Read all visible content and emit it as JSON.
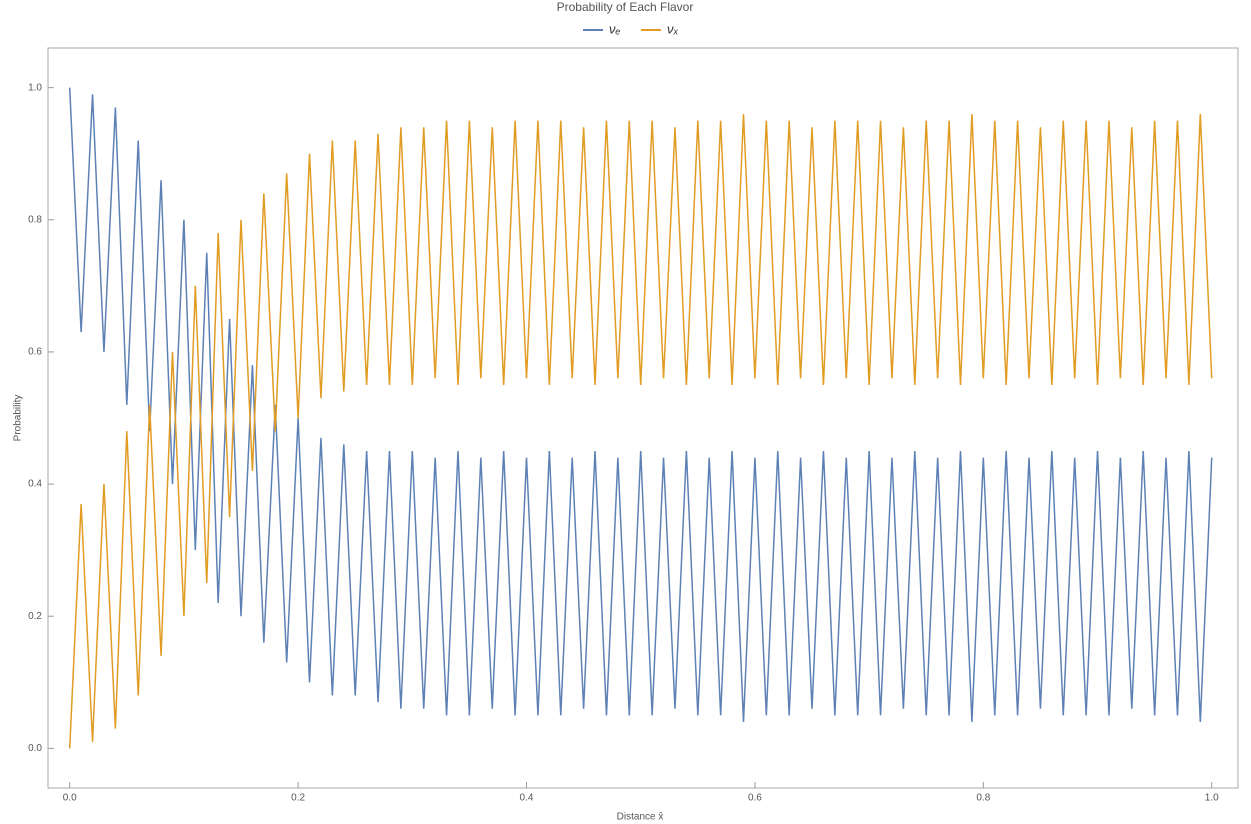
{
  "chart_data": {
    "type": "line",
    "title": "Probability of Each Flavor",
    "x_label": "Distance x̂",
    "y_label": "Probability",
    "x": [
      0,
      0.01,
      0.02,
      0.03,
      0.04,
      0.05,
      0.06,
      0.07,
      0.08,
      0.09,
      0.1,
      0.11,
      0.12,
      0.13,
      0.14,
      0.15,
      0.16,
      0.17,
      0.18,
      0.19,
      0.2,
      0.21,
      0.22,
      0.23,
      0.24,
      0.25,
      0.26,
      0.27,
      0.28,
      0.29,
      0.3,
      0.31,
      0.32,
      0.33,
      0.34,
      0.35,
      0.36,
      0.37,
      0.38,
      0.39,
      0.4,
      0.41,
      0.42,
      0.43,
      0.44,
      0.45,
      0.46,
      0.47,
      0.48,
      0.49,
      0.5,
      0.51,
      0.52,
      0.53,
      0.54,
      0.55,
      0.56,
      0.57,
      0.58,
      0.59,
      0.6,
      0.61,
      0.62,
      0.63,
      0.64,
      0.65,
      0.66,
      0.67,
      0.68,
      0.69,
      0.7,
      0.71,
      0.72,
      0.73,
      0.74,
      0.75,
      0.76,
      0.77,
      0.78,
      0.79,
      0.8,
      0.81,
      0.82,
      0.83,
      0.84,
      0.85,
      0.86,
      0.87,
      0.88,
      0.89,
      0.9,
      0.91,
      0.92,
      0.93,
      0.94,
      0.95,
      0.96,
      0.97,
      0.98,
      0.99,
      1
    ],
    "series": [
      {
        "name": "νₑ",
        "color": "#5e81b5",
        "values": [
          1.0,
          0.63,
          0.99,
          0.6,
          0.97,
          0.52,
          0.92,
          0.48,
          0.86,
          0.4,
          0.8,
          0.3,
          0.75,
          0.22,
          0.65,
          0.2,
          0.58,
          0.16,
          0.52,
          0.13,
          0.5,
          0.1,
          0.47,
          0.08,
          0.46,
          0.08,
          0.45,
          0.07,
          0.45,
          0.06,
          0.45,
          0.06,
          0.44,
          0.05,
          0.45,
          0.05,
          0.44,
          0.06,
          0.45,
          0.05,
          0.44,
          0.05,
          0.45,
          0.05,
          0.44,
          0.06,
          0.45,
          0.05,
          0.44,
          0.05,
          0.45,
          0.05,
          0.44,
          0.06,
          0.45,
          0.05,
          0.44,
          0.05,
          0.45,
          0.04,
          0.44,
          0.05,
          0.45,
          0.05,
          0.44,
          0.06,
          0.45,
          0.05,
          0.44,
          0.05,
          0.45,
          0.05,
          0.44,
          0.06,
          0.45,
          0.05,
          0.44,
          0.05,
          0.45,
          0.04,
          0.44,
          0.05,
          0.45,
          0.05,
          0.44,
          0.06,
          0.45,
          0.05,
          0.44,
          0.05,
          0.45,
          0.05,
          0.44,
          0.06,
          0.45,
          0.05,
          0.44,
          0.05,
          0.45,
          0.04,
          0.44
        ]
      },
      {
        "name": "νₓ",
        "color": "#e19c24",
        "values": [
          0.0,
          0.37,
          0.01,
          0.4,
          0.03,
          0.48,
          0.08,
          0.52,
          0.14,
          0.6,
          0.2,
          0.7,
          0.25,
          0.78,
          0.35,
          0.8,
          0.42,
          0.84,
          0.48,
          0.87,
          0.5,
          0.9,
          0.53,
          0.92,
          0.54,
          0.92,
          0.55,
          0.93,
          0.55,
          0.94,
          0.55,
          0.94,
          0.56,
          0.95,
          0.55,
          0.95,
          0.56,
          0.94,
          0.55,
          0.95,
          0.56,
          0.95,
          0.55,
          0.95,
          0.56,
          0.94,
          0.55,
          0.95,
          0.56,
          0.95,
          0.55,
          0.95,
          0.56,
          0.94,
          0.55,
          0.95,
          0.56,
          0.95,
          0.55,
          0.96,
          0.56,
          0.95,
          0.55,
          0.95,
          0.56,
          0.94,
          0.55,
          0.95,
          0.56,
          0.95,
          0.55,
          0.95,
          0.56,
          0.94,
          0.55,
          0.95,
          0.56,
          0.95,
          0.55,
          0.96,
          0.56,
          0.95,
          0.55,
          0.95,
          0.56,
          0.94,
          0.55,
          0.95,
          0.56,
          0.95,
          0.55,
          0.95,
          0.56,
          0.94,
          0.55,
          0.95,
          0.56,
          0.95,
          0.55,
          0.96,
          0.56
        ]
      }
    ],
    "xlim": [
      -0.019,
      1.023
    ],
    "ylim": [
      -0.06,
      1.06
    ],
    "xticks": [
      {
        "value": 0,
        "label": "0.0"
      },
      0.2,
      0.4,
      0.6,
      0.8,
      {
        "value": 1,
        "label": "1.0"
      }
    ],
    "yticks": [
      {
        "value": 0,
        "label": "0.0"
      },
      0.2,
      0.4,
      0.6,
      0.8,
      {
        "value": 1,
        "label": "1.0"
      }
    ]
  }
}
